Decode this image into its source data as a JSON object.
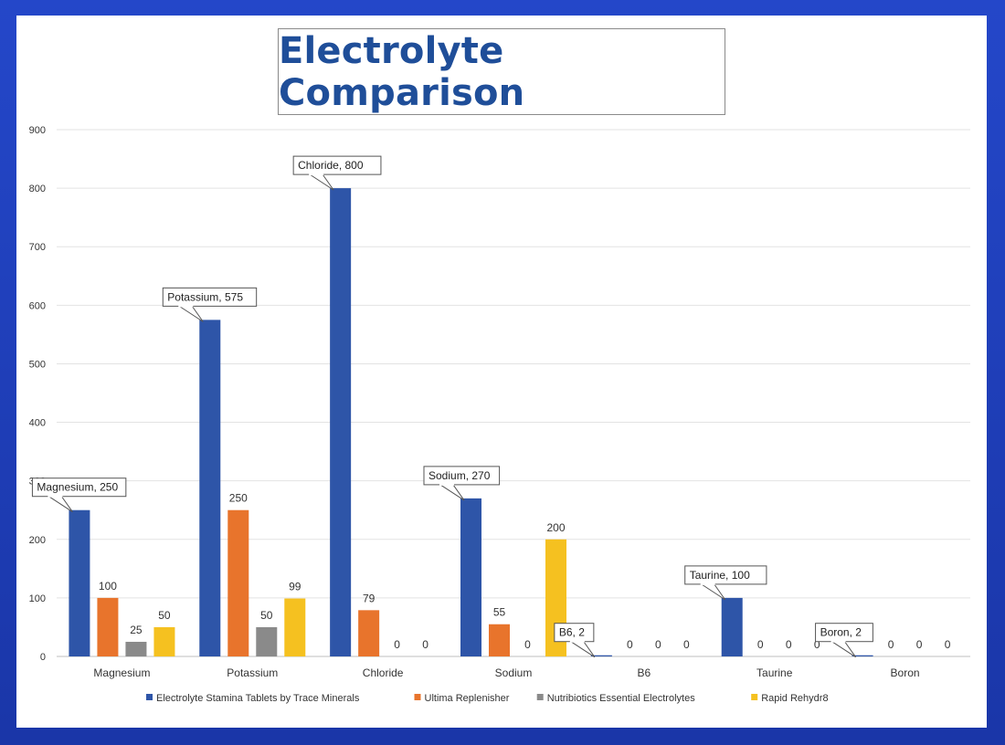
{
  "title": "Electrolyte Comparison",
  "colors": {
    "frame": "#1f3fb8",
    "series": [
      "#2e55a8",
      "#e8742c",
      "#8a8a8a",
      "#f5c120"
    ]
  },
  "chart_data": {
    "type": "bar",
    "title": "Electrolyte Comparison",
    "categories": [
      "Magnesium",
      "Potassium",
      "Chloride",
      "Sodium",
      "B6",
      "Taurine",
      "Boron"
    ],
    "series": [
      {
        "name": "Electrolyte Stamina Tablets by Trace Minerals",
        "values": [
          250,
          575,
          800,
          270,
          2,
          100,
          2
        ]
      },
      {
        "name": "Ultima Replenisher",
        "values": [
          100,
          250,
          79,
          55,
          0,
          0,
          0
        ]
      },
      {
        "name": "Nutribiotics Essential Electrolytes",
        "values": [
          25,
          50,
          0,
          0,
          0,
          0,
          0
        ]
      },
      {
        "name": "Rapid Rehydr8",
        "values": [
          50,
          99,
          0,
          200,
          0,
          0,
          0
        ]
      }
    ],
    "callouts": [
      "Magnesium, 250",
      "Potassium, 575",
      "Chloride, 800",
      "Sodium, 270",
      "B6, 2",
      "Taurine, 100",
      "Boron, 2"
    ],
    "yticks": [
      "0",
      "100",
      "200",
      "300",
      "400",
      "500",
      "600",
      "700",
      "800",
      "900"
    ],
    "ylim": [
      0,
      900
    ],
    "grid": true,
    "legend_position": "bottom"
  }
}
